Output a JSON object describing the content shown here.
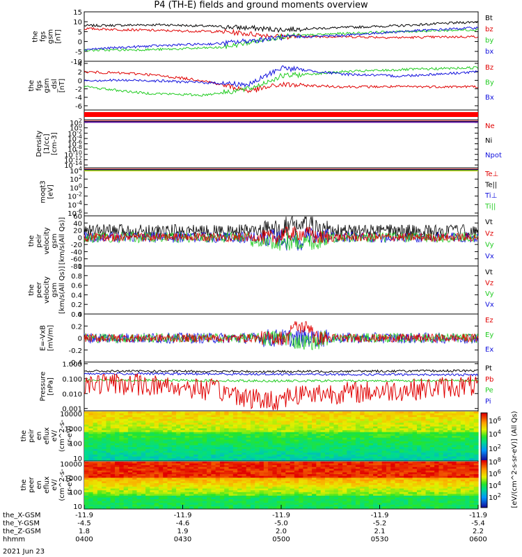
{
  "title": "P4 (TH-E) fields and ground moments overview",
  "colors": {
    "black": "#000000",
    "red": "#e00000",
    "green": "#22cc22",
    "blue": "#1010dd",
    "bar": "#ff0000",
    "purple": "#7a1aa0",
    "yellow": "#d8d000"
  },
  "chart_data": [
    {
      "id": "fgs",
      "type": "line",
      "ylabel": [
        "the",
        "fgs",
        "gsm",
        "[nT]"
      ],
      "ylim": [
        -10,
        15
      ],
      "yticks": [
        -10,
        -5,
        0,
        5,
        10,
        15
      ],
      "legend": [
        {
          "label": "Bt",
          "color": "black"
        },
        {
          "label": "bz",
          "color": "red"
        },
        {
          "label": "by",
          "color": "green"
        },
        {
          "label": "bx",
          "color": "blue"
        }
      ],
      "series": [
        {
          "name": "Bt",
          "color": "black",
          "x": [
            0,
            0.2,
            0.35,
            0.5,
            0.65,
            0.8,
            1
          ],
          "y": [
            8,
            8.5,
            7.5,
            6,
            7,
            8,
            10
          ]
        },
        {
          "name": "bz",
          "color": "red",
          "x": [
            0,
            0.2,
            0.35,
            0.5,
            0.65,
            0.8,
            1
          ],
          "y": [
            6.5,
            5.5,
            5,
            2.5,
            2.5,
            2,
            2.5
          ]
        },
        {
          "name": "by",
          "color": "green",
          "x": [
            0,
            0.2,
            0.35,
            0.5,
            0.65,
            0.8,
            1
          ],
          "y": [
            -4.5,
            -4,
            -3,
            2.5,
            4,
            5,
            6
          ]
        },
        {
          "name": "bx",
          "color": "blue",
          "x": [
            0,
            0.2,
            0.35,
            0.5,
            0.65,
            0.8,
            1
          ],
          "y": [
            -4,
            -2,
            -1,
            2,
            3,
            5,
            7
          ]
        }
      ]
    },
    {
      "id": "fgs-dsl",
      "type": "line",
      "ylabel": [
        "the",
        "fgs",
        "gsm",
        "_dsl",
        "[nT]"
      ],
      "ylim": [
        -7,
        4.5
      ],
      "yticks": [
        -6,
        -4,
        -2,
        0,
        2,
        4
      ],
      "legend": [
        {
          "label": "Bz",
          "color": "red"
        },
        {
          "label": "By",
          "color": "green"
        },
        {
          "label": "Bx",
          "color": "blue"
        }
      ],
      "series": [
        {
          "name": "Bz",
          "color": "red",
          "x": [
            0,
            0.15,
            0.3,
            0.42,
            0.5,
            0.65,
            0.8,
            1
          ],
          "y": [
            2,
            1.5,
            0,
            -2.5,
            -1,
            -1.5,
            -1.5,
            -1.5
          ]
        },
        {
          "name": "By",
          "color": "green",
          "x": [
            0,
            0.15,
            0.3,
            0.42,
            0.5,
            0.65,
            0.8,
            1
          ],
          "y": [
            -1.5,
            -3,
            -3.5,
            -2,
            1,
            2,
            2.5,
            3
          ]
        },
        {
          "name": "Bx",
          "color": "blue",
          "x": [
            0,
            0.15,
            0.3,
            0.42,
            0.5,
            0.65,
            0.8,
            1
          ],
          "y": [
            0,
            0,
            -0.5,
            -1,
            3,
            1.5,
            1,
            2
          ]
        }
      ]
    },
    {
      "id": "density",
      "type": "line",
      "ylabel": [
        "Density",
        "[1/cc]",
        "[cm-3]"
      ],
      "ylim": [
        -16,
        4
      ],
      "yticks_labels": [
        "10^{-14}",
        "10^{-12}",
        "10^{-10}",
        "10^{-8}",
        "10^{-6}",
        "10^{-4}",
        "10^{-2}",
        "10^{0}",
        "10^{2}"
      ],
      "legend": [
        {
          "label": "Ne",
          "color": "red"
        },
        {
          "label": "Ni",
          "color": "black"
        },
        {
          "label": "Npot",
          "color": "blue"
        }
      ]
    },
    {
      "id": "temp",
      "type": "line",
      "ylabel": [
        "moqt3",
        "[eV]"
      ],
      "yticks_labels": [
        "10^{-6}",
        "10^{-4}",
        "10^{-2}",
        "10^{0}",
        "10^{2}",
        "10^{4}"
      ],
      "legend": [
        {
          "label": "Te⊥",
          "color": "red"
        },
        {
          "label": "Te||",
          "color": "black"
        },
        {
          "label": "Ti⊥",
          "color": "blue"
        },
        {
          "label": "Ti||",
          "color": "green"
        }
      ]
    },
    {
      "id": "peir-vel",
      "type": "line",
      "ylabel": [
        "the",
        "peir",
        "velocity",
        "gsm",
        "[km/s(All Qs)]"
      ],
      "ylim": [
        -80,
        60
      ],
      "yticks": [
        -80,
        -60,
        -40,
        -20,
        0,
        20,
        40,
        60
      ],
      "legend": [
        {
          "label": "Vt",
          "color": "black"
        },
        {
          "label": "Vz",
          "color": "red"
        },
        {
          "label": "Vy",
          "color": "green"
        },
        {
          "label": "Vx",
          "color": "blue"
        }
      ]
    },
    {
      "id": "peer-vel",
      "type": "line",
      "ylabel": [
        "the",
        "peer",
        "velocity",
        "gsm",
        "[km/s(All Qs)]"
      ],
      "ylim": [
        0,
        1
      ],
      "yticks": [
        0.0,
        0.2,
        0.4,
        0.6,
        0.8,
        1.0
      ],
      "legend": [
        {
          "label": "Vt",
          "color": "black"
        },
        {
          "label": "Vz",
          "color": "red"
        },
        {
          "label": "Vy",
          "color": "green"
        },
        {
          "label": "Vx",
          "color": "blue"
        }
      ]
    },
    {
      "id": "efield",
      "type": "line",
      "ylabel": [
        "E=-VxB",
        "[mV/m]"
      ],
      "ylim": [
        -0.4,
        0.4
      ],
      "yticks": [
        -0.4,
        -0.2,
        0.0,
        0.2,
        0.4
      ],
      "legend": [
        {
          "label": "Ez",
          "color": "red"
        },
        {
          "label": "Ey",
          "color": "green"
        },
        {
          "label": "Ex",
          "color": "blue"
        }
      ]
    },
    {
      "id": "pressure",
      "type": "line",
      "ylabel": [
        "Pressure",
        "[nPa]"
      ],
      "ylog": true,
      "ylim": [
        0.0007,
        1.3
      ],
      "yticks": [
        0.001,
        0.01,
        0.1,
        1.0
      ],
      "yticks_labels": [
        "0.001",
        "0.010",
        "0.100",
        "1.000"
      ],
      "legend": [
        {
          "label": "Pt",
          "color": "black"
        },
        {
          "label": "Pb",
          "color": "red"
        },
        {
          "label": "Pe",
          "color": "green"
        },
        {
          "label": "Pi",
          "color": "blue"
        }
      ],
      "series": [
        {
          "name": "Pt",
          "color": "black",
          "x": [
            0,
            0.5,
            1
          ],
          "y": [
            0.32,
            0.3,
            0.34
          ]
        },
        {
          "name": "Pi",
          "color": "blue",
          "x": [
            0,
            0.5,
            1
          ],
          "y": [
            0.22,
            0.2,
            0.18
          ]
        },
        {
          "name": "Pe",
          "color": "green",
          "x": [
            0,
            0.5,
            1
          ],
          "y": [
            0.08,
            0.07,
            0.075
          ]
        },
        {
          "name": "Pb",
          "color": "red",
          "x": [
            0,
            0.2,
            0.3,
            0.42,
            0.48,
            0.55,
            0.7,
            0.85,
            1
          ],
          "y": [
            0.05,
            0.035,
            0.02,
            0.005,
            0.003,
            0.01,
            0.012,
            0.02,
            0.035
          ]
        }
      ]
    },
    {
      "id": "peir-en",
      "type": "heatmap",
      "ylabel": [
        "the",
        "peir",
        "en",
        "eflux",
        "eV/",
        "(cm^2-s-",
        "sr-eV)"
      ],
      "ylog": true,
      "yticks_labels": [
        "10",
        "100",
        "1000",
        "10000"
      ]
    },
    {
      "id": "peer-en",
      "type": "heatmap",
      "ylabel": [
        "the",
        "peer",
        "en",
        "eflux",
        "eV/",
        "(cm^2-s-",
        "sr-eV)"
      ],
      "ylog": true,
      "yticks_labels": [
        "10",
        "100",
        "1000",
        "10000"
      ]
    }
  ],
  "colorbar": {
    "label": "[eV/(cm^2-s-sr-eV)] (All Qs)",
    "ticks": [
      "10^{2}",
      "10^{4}",
      "10^{6}",
      "10^{2}",
      "10^{4}",
      "10^{6}",
      "10^{8}"
    ]
  },
  "xaxis": {
    "rows": [
      {
        "label": "the_X-GSM",
        "values": [
          "-11.9",
          "-11.9",
          "-11.9",
          "-11.9",
          "-11.9"
        ]
      },
      {
        "label": "the_Y-GSM",
        "values": [
          "-4.5",
          "-4.6",
          "-5.0",
          "-5.2",
          "-5.4"
        ]
      },
      {
        "label": "the_Z-GSM",
        "values": [
          "1.8",
          "1.9",
          "2.0",
          "2.1",
          "2.2"
        ]
      },
      {
        "label": "hhmm",
        "values": [
          "0400",
          "0430",
          "0500",
          "0530",
          "0600"
        ]
      }
    ],
    "date": "2021 Jun 23"
  }
}
